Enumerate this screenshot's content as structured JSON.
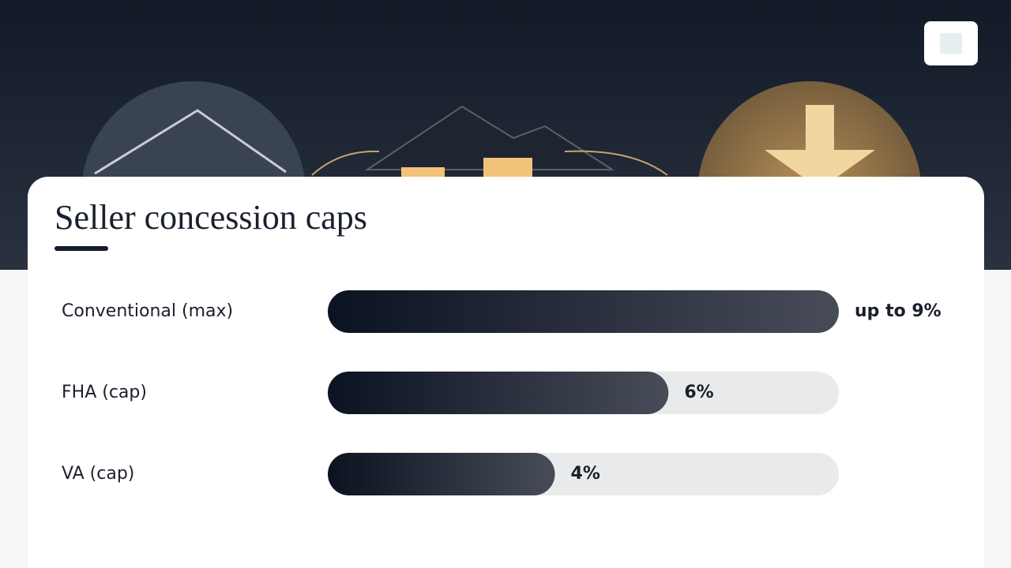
{
  "chart_data": {
    "type": "bar",
    "orientation": "horizontal",
    "title": "Seller concession caps",
    "categories": [
      "Conventional (max)",
      "FHA (cap)",
      "VA (cap)"
    ],
    "values": [
      9,
      6,
      4
    ],
    "value_labels": [
      "up to 9%",
      "6%",
      "4%"
    ],
    "xlim": [
      0,
      9
    ]
  }
}
